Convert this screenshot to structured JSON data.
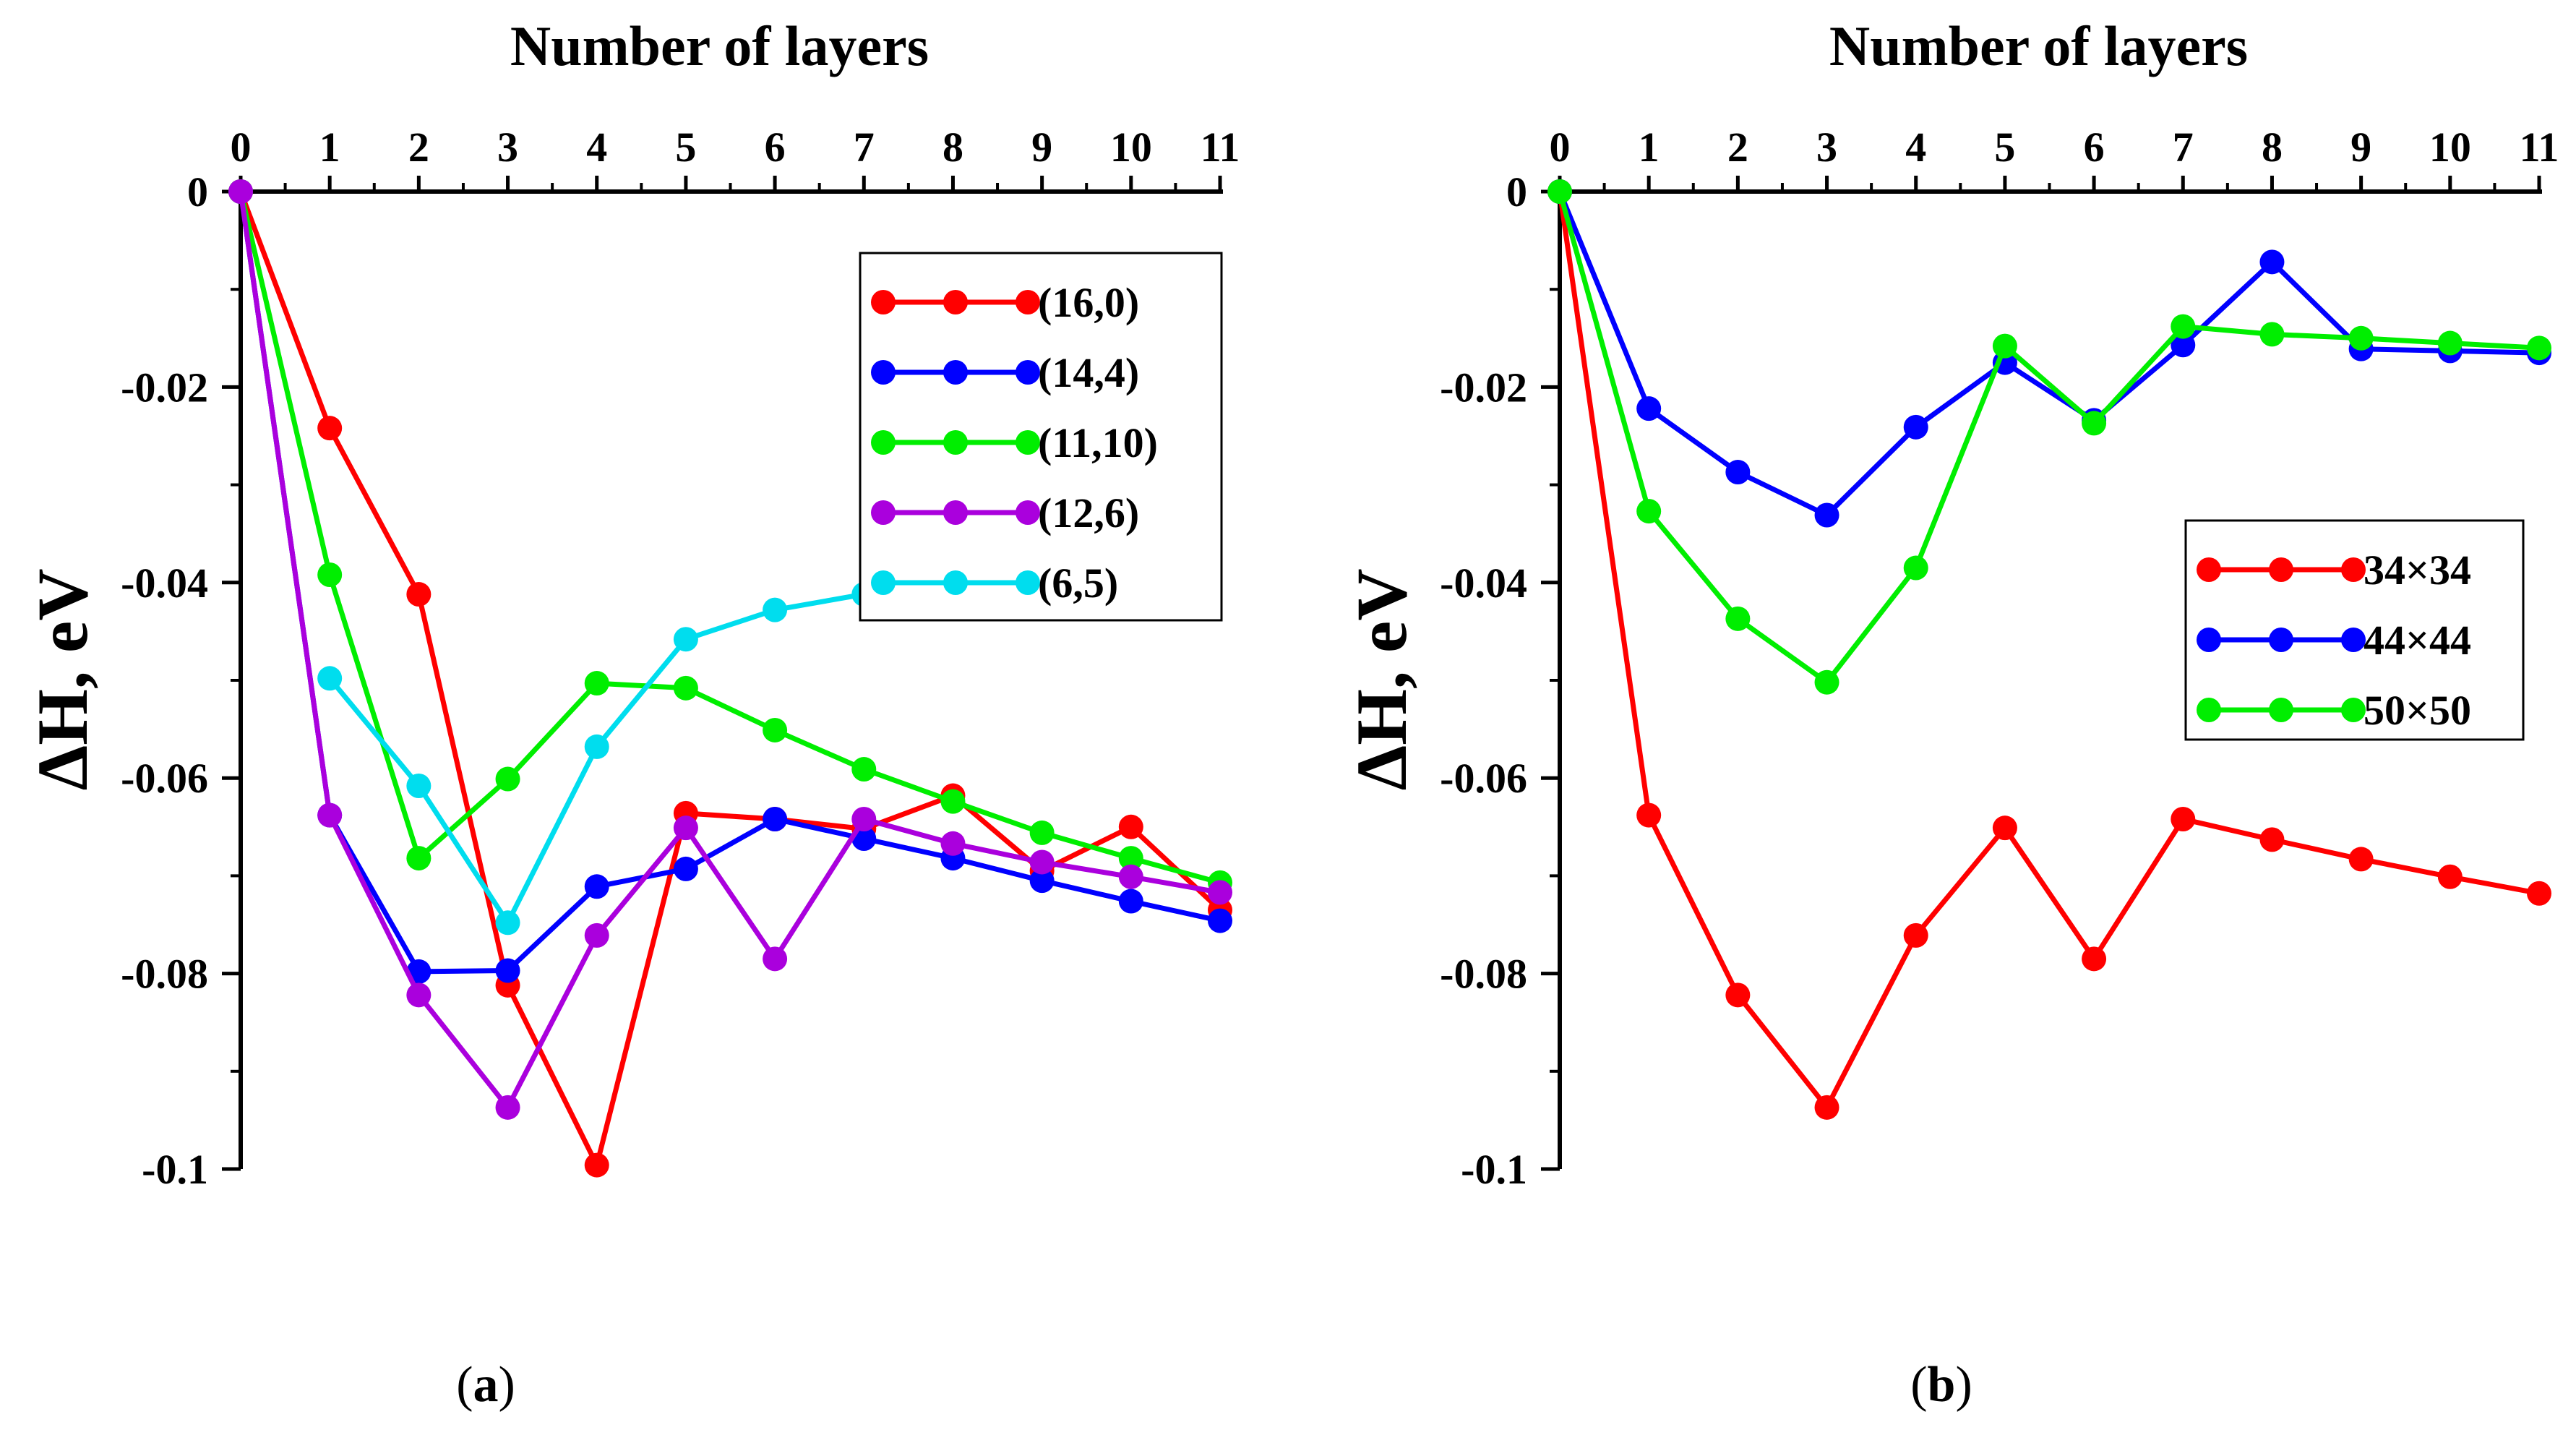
{
  "chart_data": [
    {
      "type": "line",
      "panel_label": "(a)",
      "panel_letter": "a",
      "xlabel": "Number of layers",
      "ylabel": "ΔH, eV",
      "xlim": [
        0,
        11
      ],
      "ylim": [
        -0.1,
        0
      ],
      "x_ticks": [
        0,
        1,
        2,
        3,
        4,
        5,
        6,
        7,
        8,
        9,
        10,
        11
      ],
      "y_ticks": [
        0,
        -0.02,
        -0.04,
        -0.06,
        -0.08,
        -0.1
      ],
      "y_tick_labels": [
        "0",
        "-0.02",
        "-0.04",
        "-0.06",
        "-0.08",
        "-0.1"
      ],
      "legend_position": "top-right",
      "series": [
        {
          "name": "(16,0)",
          "color": "#ff0000",
          "x": [
            0,
            1,
            2,
            3,
            4,
            5,
            6,
            7,
            8,
            9,
            10,
            11
          ],
          "values": [
            0,
            -0.0242,
            -0.0412,
            -0.0812,
            -0.0996,
            -0.0636,
            -0.0642,
            -0.0652,
            -0.0618,
            -0.0695,
            -0.065,
            -0.0735
          ]
        },
        {
          "name": "(14,4)",
          "color": "#0000ff",
          "x": [
            0,
            1,
            2,
            3,
            4,
            5,
            6,
            7,
            8,
            9,
            10,
            11
          ],
          "values": [
            0,
            -0.0638,
            -0.0798,
            -0.0797,
            -0.0711,
            -0.0693,
            -0.0642,
            -0.0662,
            -0.0682,
            -0.0705,
            -0.0726,
            -0.0746
          ]
        },
        {
          "name": "(11,10)",
          "color": "#00ee00",
          "x": [
            0,
            1,
            2,
            3,
            4,
            5,
            6,
            7,
            8,
            9,
            10,
            11
          ],
          "values": [
            0,
            -0.0392,
            -0.0682,
            -0.0601,
            -0.0503,
            -0.0508,
            -0.0551,
            -0.0591,
            -0.0624,
            -0.0656,
            -0.0682,
            -0.0707
          ]
        },
        {
          "name": "(12,6)",
          "color": "#aa00dd",
          "x": [
            0,
            1,
            2,
            3,
            4,
            5,
            6,
            7,
            8,
            9,
            10,
            11
          ],
          "values": [
            0,
            -0.0638,
            -0.0822,
            -0.0937,
            -0.0761,
            -0.0651,
            -0.0785,
            -0.0642,
            -0.0667,
            -0.0686,
            -0.0701,
            -0.0717
          ]
        },
        {
          "name": "(6,5)",
          "color": "#00ddee",
          "x": [
            1,
            2,
            3,
            4,
            5,
            6,
            7
          ],
          "values": [
            -0.0498,
            -0.0608,
            -0.0748,
            -0.0568,
            -0.0458,
            -0.0428,
            -0.0412
          ]
        }
      ]
    },
    {
      "type": "line",
      "panel_label": "(b)",
      "panel_letter": "b",
      "xlabel": "Number of layers",
      "ylabel": "ΔH, eV",
      "xlim": [
        0,
        11
      ],
      "ylim": [
        -0.1,
        0
      ],
      "x_ticks": [
        0,
        1,
        2,
        3,
        4,
        5,
        6,
        7,
        8,
        9,
        10,
        11
      ],
      "y_ticks": [
        0,
        -0.02,
        -0.04,
        -0.06,
        -0.08,
        -0.1
      ],
      "y_tick_labels": [
        "0",
        "-0.02",
        "-0.04",
        "-0.06",
        "-0.08",
        "-0.1"
      ],
      "legend_position": "top-right",
      "series": [
        {
          "name": "34×34",
          "color": "#ff0000",
          "x": [
            0,
            1,
            2,
            3,
            4,
            5,
            6,
            7,
            8,
            9,
            10,
            11
          ],
          "values": [
            0,
            -0.0638,
            -0.0822,
            -0.0937,
            -0.0761,
            -0.0651,
            -0.0785,
            -0.0642,
            -0.0663,
            -0.0683,
            -0.0701,
            -0.0718
          ]
        },
        {
          "name": "44×44",
          "color": "#0000ff",
          "x": [
            0,
            1,
            2,
            3,
            4,
            5,
            6,
            7,
            8,
            9,
            10,
            11
          ],
          "values": [
            0,
            -0.0222,
            -0.0287,
            -0.0331,
            -0.0241,
            -0.0175,
            -0.0234,
            -0.0157,
            -0.0072,
            -0.0161,
            -0.0163,
            -0.0165
          ]
        },
        {
          "name": "50×50",
          "color": "#00ee00",
          "x": [
            0,
            1,
            2,
            3,
            4,
            5,
            6,
            7,
            8,
            9,
            10,
            11
          ],
          "values": [
            0,
            -0.0327,
            -0.0437,
            -0.0502,
            -0.0385,
            -0.0158,
            -0.0237,
            -0.0138,
            -0.0146,
            -0.015,
            -0.0155,
            -0.016
          ]
        }
      ]
    }
  ]
}
